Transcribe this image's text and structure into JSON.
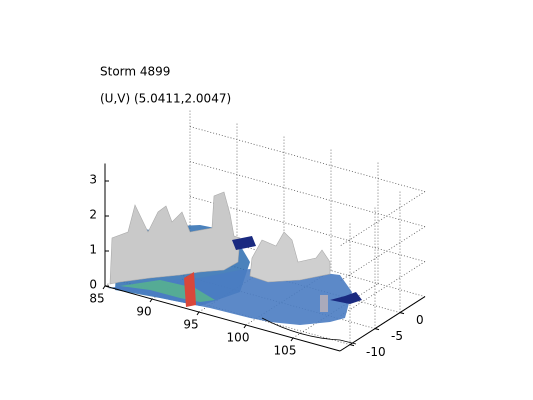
{
  "chart_data": {
    "type": "surface3d",
    "title": "Storm 4899",
    "subtitle": "(U,V) (5.0411,2.0047)",
    "xlim": [
      85,
      110
    ],
    "xticks": [
      85,
      90,
      95,
      100,
      105
    ],
    "ylim": [
      -12,
      5
    ],
    "yticks": [
      -10,
      -5,
      0
    ],
    "zlim": [
      0,
      3.5
    ],
    "zticks": [
      0,
      1,
      2,
      3
    ],
    "grid": true
  }
}
